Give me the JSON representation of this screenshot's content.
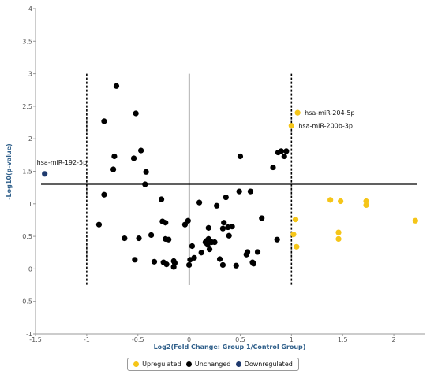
{
  "chart_data": {
    "type": "scatter",
    "xlabel": "Log2(Fold Change: Group 1/Control Group)",
    "ylabel": "-Log10(p-value)",
    "xlim": [
      -1.5,
      2.3
    ],
    "ylim": [
      -1,
      4
    ],
    "x_ticks": [
      -1.5,
      -1,
      -0.5,
      0,
      0.5,
      1,
      1.5,
      2
    ],
    "y_ticks": [
      -1,
      -0.5,
      0,
      0.5,
      1,
      1.5,
      2,
      2.5,
      3,
      3.5,
      4
    ],
    "threshold_y": 1.3,
    "fold_change_lines": [
      -1,
      1
    ],
    "zero_line_x": 0,
    "legend_position": "bottom-center",
    "series": [
      {
        "name": "Upregulated",
        "color": "#f5c518",
        "points": [
          [
            1.06,
            2.4
          ],
          [
            1.0,
            2.2
          ],
          [
            1.04,
            0.76
          ],
          [
            1.02,
            0.53
          ],
          [
            1.05,
            0.34
          ],
          [
            1.38,
            1.06
          ],
          [
            1.48,
            1.04
          ],
          [
            1.46,
            0.56
          ],
          [
            1.46,
            0.46
          ],
          [
            1.73,
            1.04
          ],
          [
            1.73,
            0.98
          ],
          [
            2.21,
            0.74
          ]
        ]
      },
      {
        "name": "Unchanged",
        "color": "#000000",
        "points": [
          [
            -0.71,
            2.81
          ],
          [
            -0.83,
            2.27
          ],
          [
            -0.52,
            2.39
          ],
          [
            -0.73,
            1.73
          ],
          [
            -0.47,
            1.82
          ],
          [
            -0.54,
            1.7
          ],
          [
            -0.74,
            1.53
          ],
          [
            -0.42,
            1.49
          ],
          [
            -0.43,
            1.3
          ],
          [
            -0.83,
            1.14
          ],
          [
            -0.27,
            1.07
          ],
          [
            -0.88,
            0.68
          ],
          [
            -0.26,
            0.73
          ],
          [
            -0.23,
            0.71
          ],
          [
            -0.37,
            0.52
          ],
          [
            -0.63,
            0.47
          ],
          [
            -0.49,
            0.47
          ],
          [
            -0.23,
            0.46
          ],
          [
            -0.2,
            0.45
          ],
          [
            -0.53,
            0.14
          ],
          [
            -0.34,
            0.11
          ],
          [
            -0.25,
            0.1
          ],
          [
            -0.22,
            0.07
          ],
          [
            -0.15,
            0.12
          ],
          [
            -0.14,
            0.09
          ],
          [
            -0.15,
            0.03
          ],
          [
            -0.04,
            0.68
          ],
          [
            -0.01,
            0.74
          ],
          [
            0.03,
            0.35
          ],
          [
            0.05,
            0.17
          ],
          [
            0.01,
            0.14
          ],
          [
            0.0,
            0.06
          ],
          [
            0.1,
            1.02
          ],
          [
            0.12,
            0.25
          ],
          [
            0.16,
            0.41
          ],
          [
            0.17,
            0.43
          ],
          [
            0.19,
            0.46
          ],
          [
            0.18,
            0.37
          ],
          [
            0.2,
            0.3
          ],
          [
            0.22,
            0.41
          ],
          [
            0.25,
            0.41
          ],
          [
            0.19,
            0.63
          ],
          [
            0.27,
            0.97
          ],
          [
            0.3,
            0.15
          ],
          [
            0.33,
            0.06
          ],
          [
            0.33,
            0.62
          ],
          [
            0.34,
            0.71
          ],
          [
            0.36,
            1.1
          ],
          [
            0.39,
            0.51
          ],
          [
            0.38,
            0.64
          ],
          [
            0.42,
            0.65
          ],
          [
            0.49,
            1.19
          ],
          [
            0.5,
            1.73
          ],
          [
            0.46,
            0.05
          ],
          [
            0.56,
            0.22
          ],
          [
            0.57,
            0.26
          ],
          [
            0.6,
            1.19
          ],
          [
            0.62,
            0.1
          ],
          [
            0.63,
            0.08
          ],
          [
            0.67,
            0.26
          ],
          [
            0.71,
            0.78
          ],
          [
            0.82,
            1.56
          ],
          [
            0.86,
            0.45
          ],
          [
            0.87,
            1.79
          ],
          [
            0.9,
            1.81
          ],
          [
            0.93,
            1.73
          ],
          [
            0.95,
            1.81
          ]
        ]
      },
      {
        "name": "Downregulated",
        "color": "#1f3a6e",
        "points": [
          [
            -1.41,
            1.46
          ]
        ]
      }
    ],
    "annotations": [
      {
        "text": "hsa-miR-204-5p",
        "x": 1.06,
        "y": 2.4
      },
      {
        "text": "hsa-miR-200b-3p",
        "x": 1.0,
        "y": 2.2
      },
      {
        "text": "hsa-miR-192-5p",
        "x": -1.41,
        "y": 1.46
      }
    ]
  }
}
